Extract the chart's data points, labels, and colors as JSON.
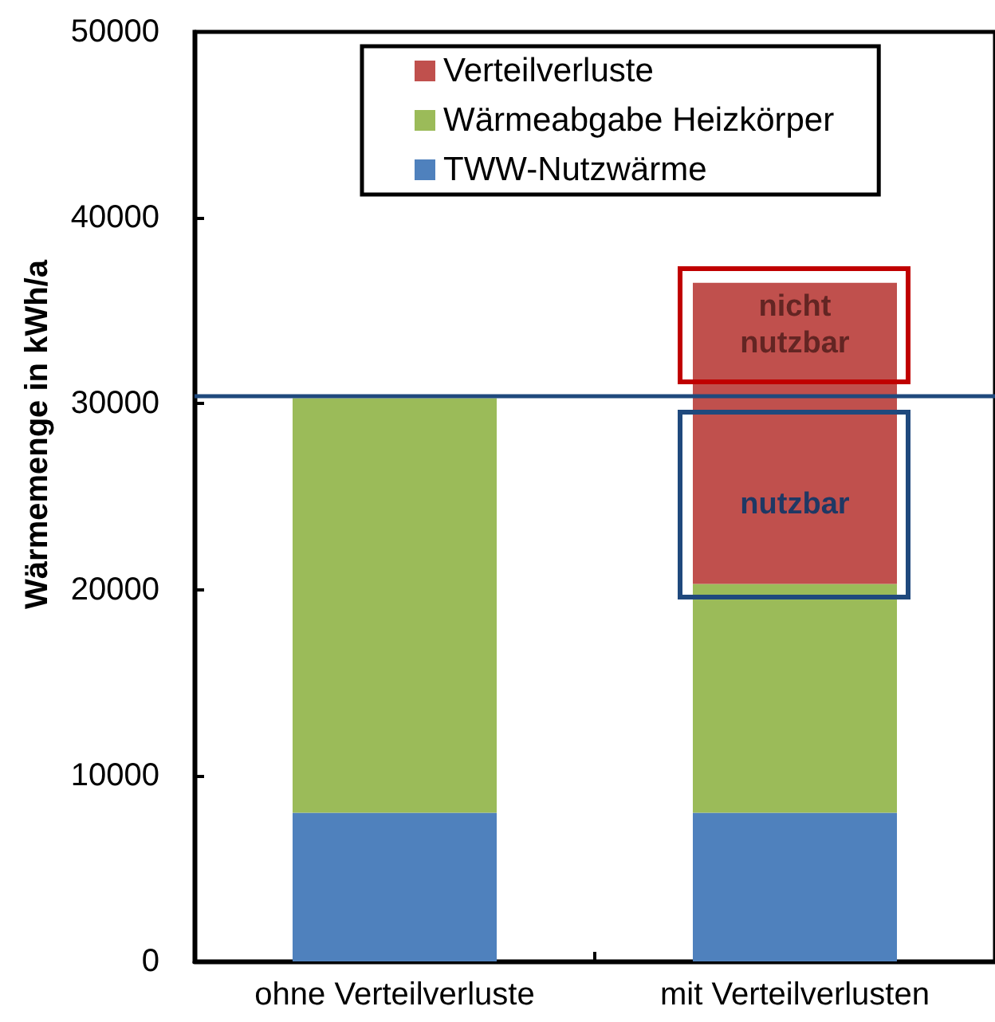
{
  "chart_data": {
    "type": "bar",
    "stacked": true,
    "ylabel": "Wärmemenge in kWh/a",
    "categories": [
      "ohne Verteilverluste",
      "mit Verteilverlusten"
    ],
    "series": [
      {
        "name": "TWW-Nutzwärme",
        "color": "#4f81bd",
        "values": [
          8000,
          8000
        ]
      },
      {
        "name": "Wärmeabgabe Heizkörper",
        "color": "#9bbb59",
        "values": [
          22300,
          12300
        ]
      },
      {
        "name": "Verteilverluste",
        "color": "#c0504d",
        "values": [
          null,
          16200
        ]
      }
    ],
    "ylim": [
      0,
      50000
    ],
    "yticks": [
      0,
      10000,
      20000,
      30000,
      40000,
      50000
    ],
    "grid": false,
    "legend": "top",
    "ref_lines": [
      {
        "axis": "y",
        "value": 30400,
        "color": "#1f497d"
      }
    ],
    "annotations": [
      "nicht nutzbar",
      "nutzbar"
    ]
  }
}
